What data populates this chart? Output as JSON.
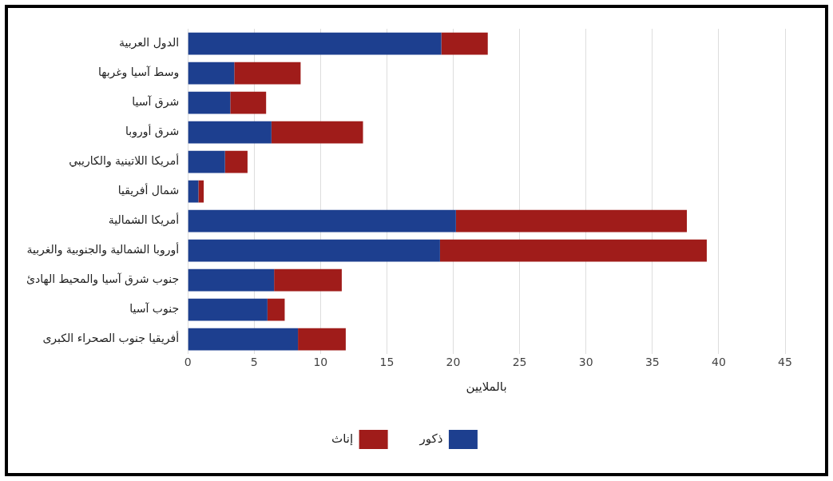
{
  "chart_data": {
    "type": "bar",
    "orientation": "horizontal",
    "stacked": true,
    "xlabel": "بالملايين",
    "categories": [
      "الدول العربية",
      "وسط آسيا وغربها",
      "شرق آسيا",
      "شرق أوروبا",
      "أمريكا اللاتينية والكاريبي",
      "شمال أفريقيا",
      "أمريكا الشمالية",
      "أوروبا الشمالية والجنوبية والغربية",
      "جنوب شرق آسيا والمحيط الهادئ",
      "جنوب آسيا",
      "أفريقيا جنوب الصحراء الكبرى"
    ],
    "series": [
      {
        "name": "ذكور",
        "color": "#1d3f8f",
        "values": [
          19.1,
          3.5,
          3.2,
          6.3,
          2.8,
          0.8,
          20.2,
          19.0,
          6.5,
          6.0,
          8.3
        ]
      },
      {
        "name": "إناث",
        "color": "#a01c1a",
        "values": [
          3.5,
          5.0,
          2.7,
          6.9,
          1.7,
          0.4,
          17.4,
          20.1,
          5.1,
          1.3,
          3.6
        ]
      }
    ],
    "xlim": [
      0,
      45
    ],
    "xticks": [
      0,
      5,
      10,
      15,
      20,
      25,
      30,
      35,
      40,
      45
    ],
    "grid": "x",
    "legend": "bottom"
  }
}
